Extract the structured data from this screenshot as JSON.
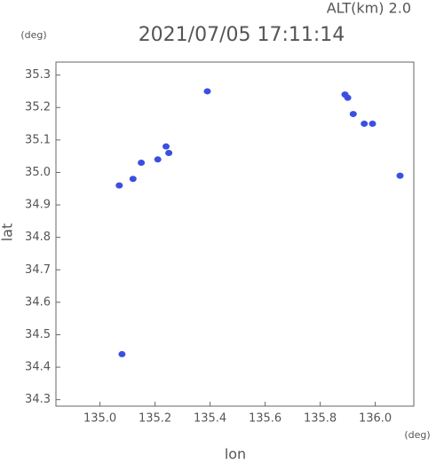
{
  "chart_data": {
    "type": "scatter",
    "title": "2021/07/05 17:11:14",
    "subtitle": "ALT(km) 2.0",
    "y_unit": "(deg)",
    "x_unit": "(deg)",
    "y_label": "lat",
    "x_label": "lon",
    "x": [
      135.39,
      135.89,
      135.9,
      135.92,
      135.96,
      135.99,
      136.09,
      135.15,
      135.12,
      135.07,
      135.25,
      135.24,
      135.21,
      135.08
    ],
    "values": [
      35.25,
      35.24,
      35.23,
      35.18,
      35.15,
      35.15,
      34.99,
      35.03,
      34.98,
      34.96,
      35.06,
      35.08,
      35.04,
      34.44
    ],
    "color": "#3a4fe0",
    "xlim": [
      134.84,
      136.14
    ],
    "ylim": [
      34.28,
      35.34
    ],
    "xticks": [
      {
        "value": 135.0,
        "label": "135.0"
      },
      135.2,
      135.4,
      135.6,
      135.8,
      {
        "value": 136.0,
        "label": "136.0"
      }
    ],
    "yticks": [
      34.3,
      34.4,
      34.5,
      34.6,
      34.7,
      34.8,
      34.9,
      {
        "value": 35.0,
        "label": "35.0"
      },
      35.1,
      35.2,
      35.3
    ],
    "grid": false
  }
}
